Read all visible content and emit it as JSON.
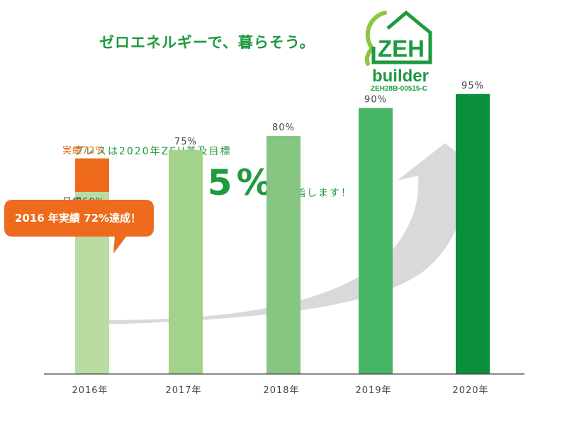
{
  "header": {
    "headline": "ゼロエネルギーで、暮らそう。",
    "logo_text": "ZEH",
    "logo_sub": "builder",
    "logo_code": "ZEH28B-00515-C"
  },
  "target": {
    "line": "プレスは2020年ZEH普及目標",
    "big_value": "95%",
    "suffix": "を目指します！"
  },
  "callout": {
    "text": "2016 年実績 72%達成！"
  },
  "colors": {
    "brand_green": "#1f9a3e",
    "actual_orange": "#ee6a1c",
    "bar_2016": "#b9dca3",
    "bar_2017": "#a3d38a",
    "bar_2018": "#86c582",
    "bar_2019": "#47b566",
    "bar_2020": "#0a8f3b",
    "arrow_gray": "#d9d9d9"
  },
  "chart_data": {
    "type": "bar",
    "categories": [
      "2016年",
      "2017年",
      "2018年",
      "2019年",
      "2020年"
    ],
    "values": [
      60,
      75,
      80,
      90,
      95
    ],
    "value_labels": [
      "目標60%",
      "75%",
      "80%",
      "90%",
      "95%"
    ],
    "actual": {
      "category": "2016年",
      "value": 72,
      "label": "実績72%"
    },
    "ylim": [
      0,
      100
    ],
    "xlabel": "",
    "ylabel": "",
    "grid": false,
    "trend_arrow": true
  }
}
